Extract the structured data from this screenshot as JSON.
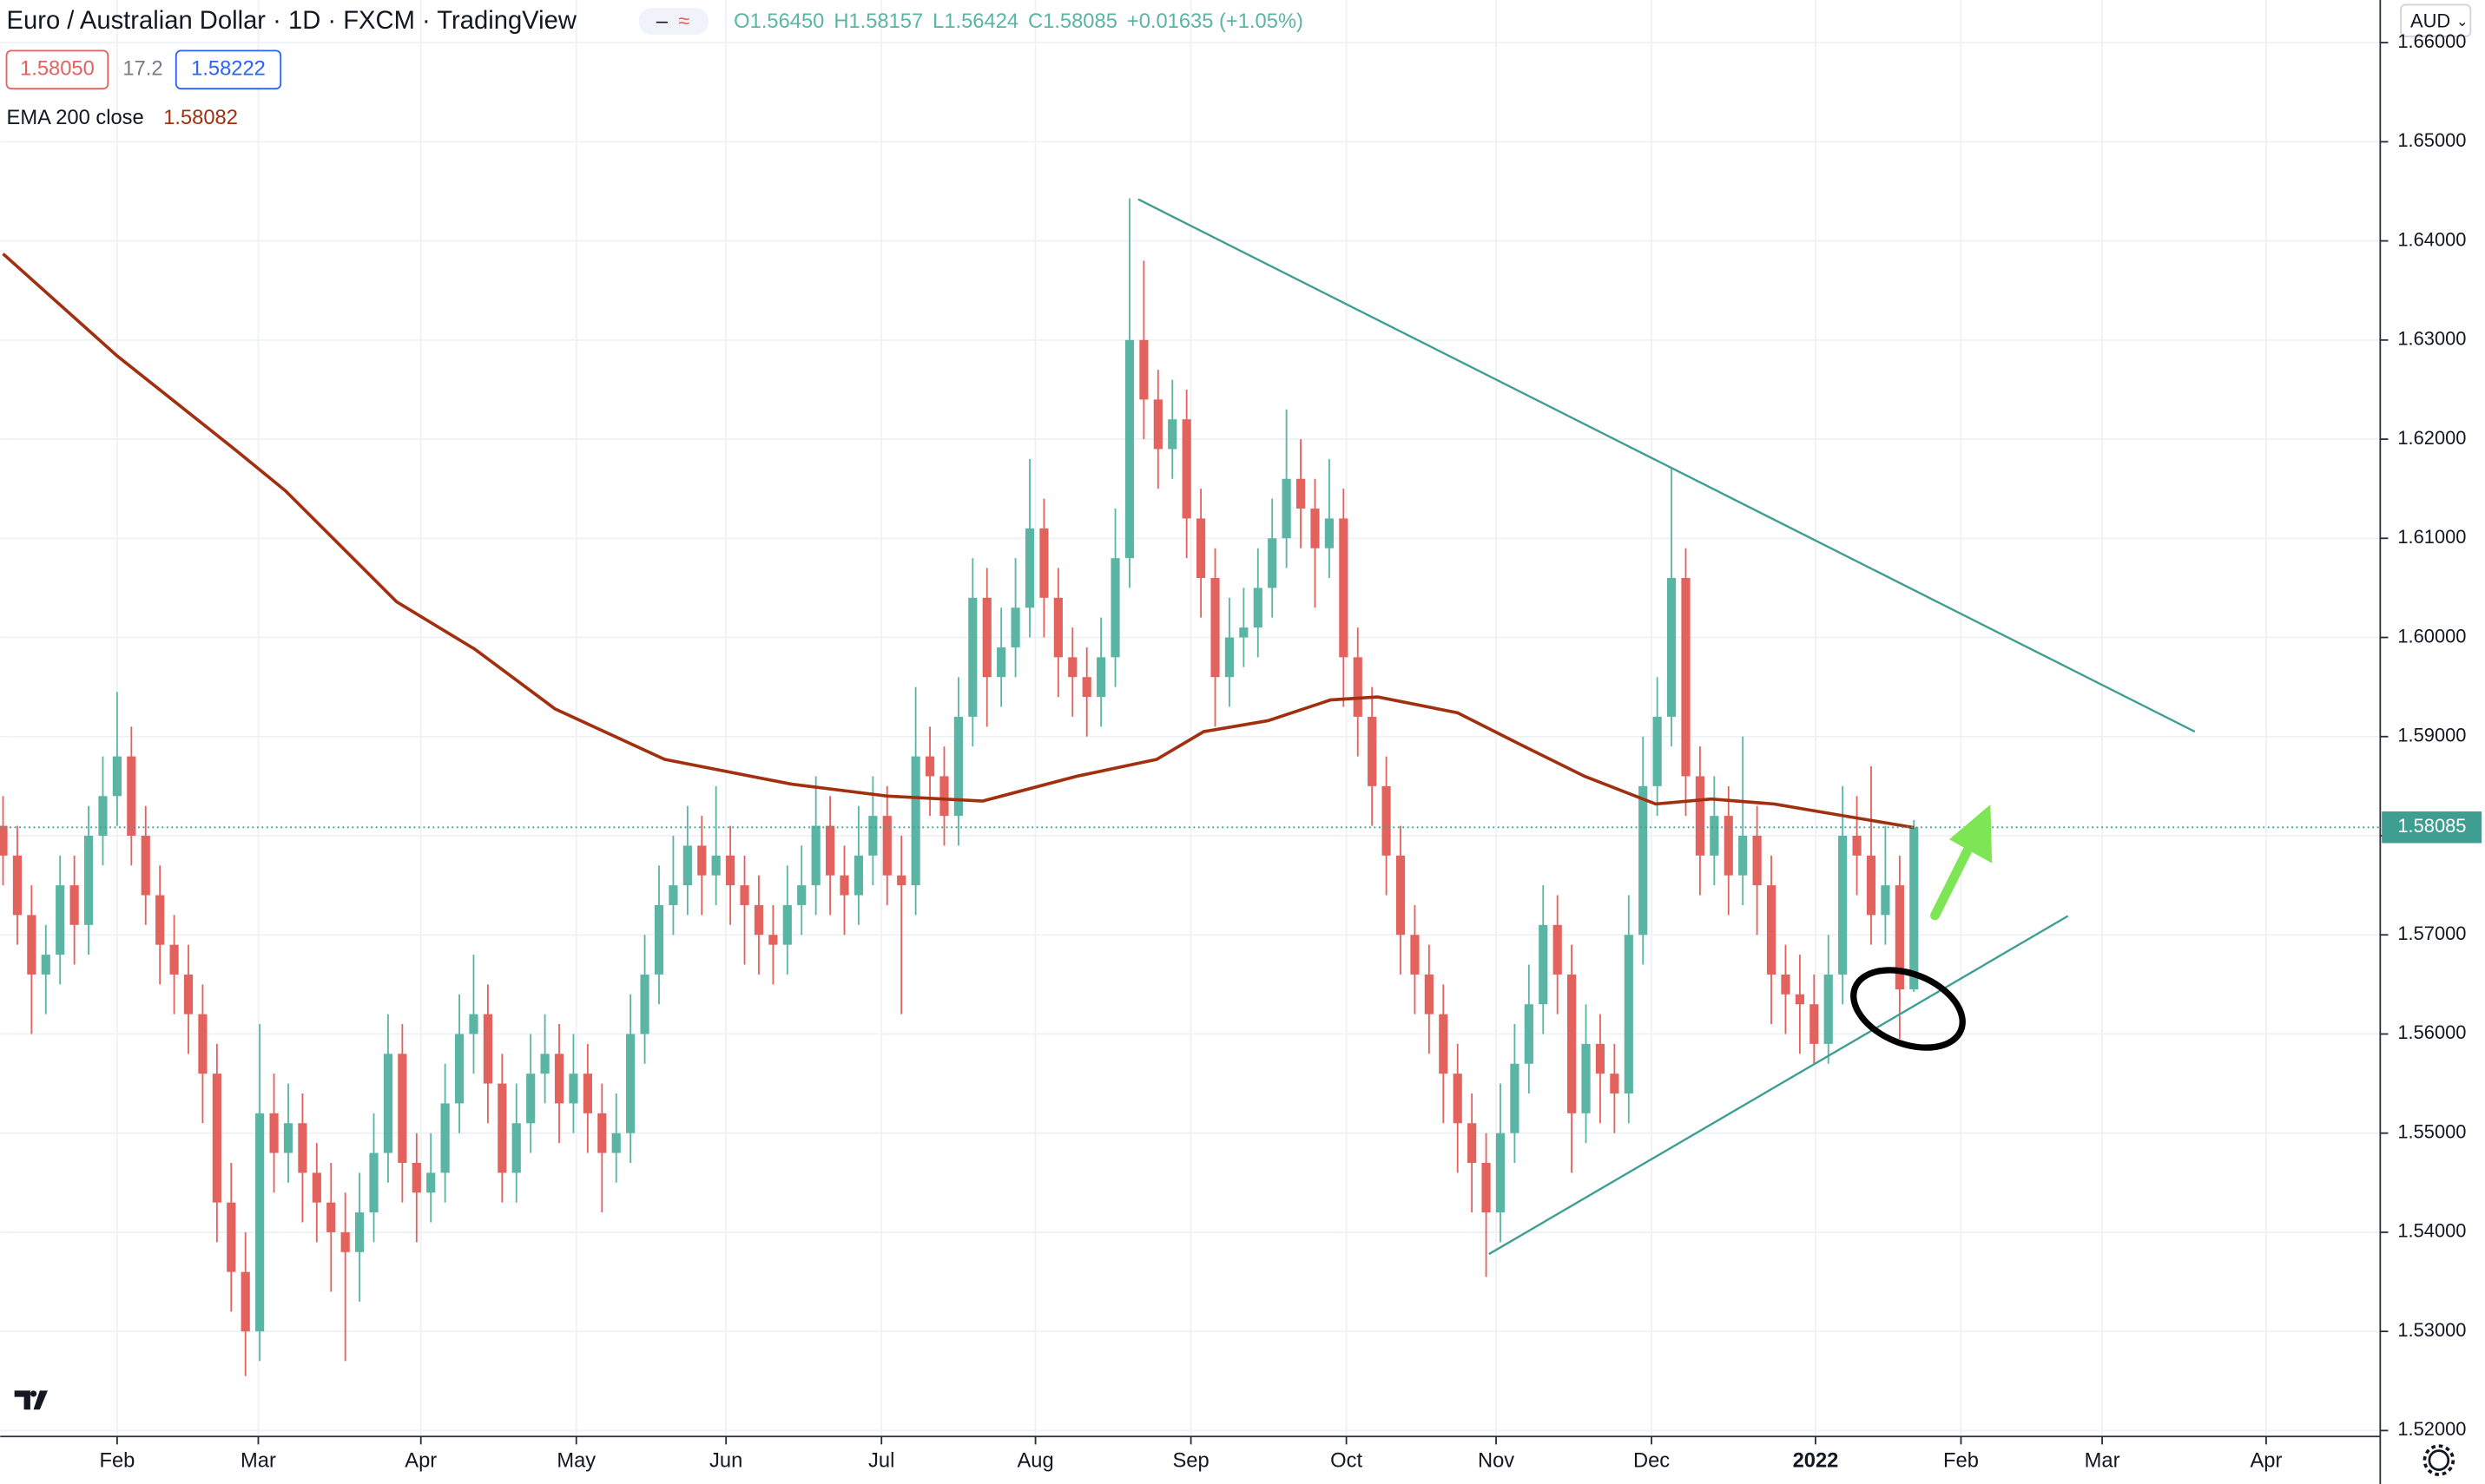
{
  "header": {
    "title": "Euro / Australian Dollar · 1D · FXCM · TradingView",
    "ohlc": [
      "O1.56450",
      "H1.58157",
      "L1.56424",
      "C1.58085"
    ],
    "change": "+0.01635 (+1.05%)",
    "bid": "1.58050",
    "spread": "17.2",
    "ask": "1.58222",
    "currency": "AUD"
  },
  "chart_data": {
    "type": "candlestick",
    "up_color": "#5ab5a4",
    "down_color": "#e4625e",
    "grid": true,
    "xlim": [
      -0.2,
      166.7
    ],
    "ylim": [
      1.5194,
      1.6643
    ],
    "xticks": [
      {
        "value": 8,
        "label": "Feb"
      },
      {
        "value": 17.9,
        "label": "Mar"
      },
      {
        "value": 29.3,
        "label": "Apr"
      },
      {
        "value": 40.2,
        "label": "May"
      },
      {
        "value": 50.7,
        "label": "Jun"
      },
      {
        "value": 61.6,
        "label": "Jul"
      },
      {
        "value": 72.4,
        "label": "Aug"
      },
      {
        "value": 83.3,
        "label": "Sep"
      },
      {
        "value": 94.2,
        "label": "Oct"
      },
      {
        "value": 104.7,
        "label": "Nov"
      },
      {
        "value": 115.6,
        "label": "Dec"
      },
      {
        "value": 127.1,
        "label": "2022",
        "bold": true
      },
      {
        "value": 137.3,
        "label": "Feb"
      },
      {
        "value": 147.2,
        "label": "Mar"
      },
      {
        "value": 158.7,
        "label": "Apr"
      }
    ],
    "yticks": [
      {
        "value": 1.52,
        "label": "1.52000"
      },
      {
        "value": 1.53,
        "label": "1.53000"
      },
      {
        "value": 1.54,
        "label": "1.54000"
      },
      {
        "value": 1.55,
        "label": "1.55000"
      },
      {
        "value": 1.56,
        "label": "1.56000"
      },
      {
        "value": 1.57,
        "label": "1.57000"
      },
      {
        "value": 1.58,
        "label": "1.58000"
      },
      {
        "value": 1.59,
        "label": "1.59000"
      },
      {
        "value": 1.6,
        "label": "1.60000"
      },
      {
        "value": 1.61,
        "label": "1.61000"
      },
      {
        "value": 1.62,
        "label": "1.62000"
      },
      {
        "value": 1.63,
        "label": "1.63000"
      },
      {
        "value": 1.64,
        "label": "1.64000"
      },
      {
        "value": 1.65,
        "label": "1.65000"
      },
      {
        "value": 1.66,
        "label": "1.66000"
      }
    ],
    "ohlc": [
      [
        1.581,
        1.584,
        1.575,
        1.578
      ],
      [
        1.578,
        1.581,
        1.569,
        1.572
      ],
      [
        1.572,
        1.575,
        1.56,
        1.566
      ],
      [
        1.566,
        1.571,
        1.562,
        1.568
      ],
      [
        1.568,
        1.578,
        1.565,
        1.575
      ],
      [
        1.575,
        1.578,
        1.567,
        1.571
      ],
      [
        1.571,
        1.583,
        1.568,
        1.58
      ],
      [
        1.58,
        1.588,
        1.577,
        1.584
      ],
      [
        1.584,
        1.5945,
        1.581,
        1.588
      ],
      [
        1.588,
        1.591,
        1.577,
        1.58
      ],
      [
        1.58,
        1.583,
        1.571,
        1.574
      ],
      [
        1.574,
        1.577,
        1.565,
        1.569
      ],
      [
        1.569,
        1.572,
        1.562,
        1.566
      ],
      [
        1.566,
        1.569,
        1.558,
        1.562
      ],
      [
        1.562,
        1.565,
        1.551,
        1.556
      ],
      [
        1.556,
        1.559,
        1.539,
        1.543
      ],
      [
        1.543,
        1.547,
        1.532,
        1.536
      ],
      [
        1.536,
        1.54,
        1.5255,
        1.53
      ],
      [
        1.53,
        1.561,
        1.527,
        1.552
      ],
      [
        1.552,
        1.556,
        1.544,
        1.548
      ],
      [
        1.548,
        1.555,
        1.545,
        1.551
      ],
      [
        1.551,
        1.554,
        1.541,
        1.546
      ],
      [
        1.546,
        1.549,
        1.539,
        1.543
      ],
      [
        1.543,
        1.547,
        1.534,
        1.54
      ],
      [
        1.54,
        1.544,
        1.527,
        1.538
      ],
      [
        1.538,
        1.546,
        1.533,
        1.542
      ],
      [
        1.542,
        1.552,
        1.539,
        1.548
      ],
      [
        1.548,
        1.562,
        1.545,
        1.558
      ],
      [
        1.558,
        1.561,
        1.543,
        1.547
      ],
      [
        1.547,
        1.55,
        1.539,
        1.544
      ],
      [
        1.544,
        1.55,
        1.541,
        1.546
      ],
      [
        1.546,
        1.557,
        1.543,
        1.553
      ],
      [
        1.553,
        1.564,
        1.55,
        1.56
      ],
      [
        1.56,
        1.568,
        1.556,
        1.562
      ],
      [
        1.562,
        1.565,
        1.551,
        1.555
      ],
      [
        1.555,
        1.558,
        1.543,
        1.546
      ],
      [
        1.546,
        1.555,
        1.543,
        1.551
      ],
      [
        1.551,
        1.56,
        1.548,
        1.556
      ],
      [
        1.556,
        1.562,
        1.553,
        1.558
      ],
      [
        1.558,
        1.561,
        1.549,
        1.553
      ],
      [
        1.553,
        1.56,
        1.55,
        1.556
      ],
      [
        1.556,
        1.559,
        1.548,
        1.552
      ],
      [
        1.552,
        1.555,
        1.542,
        1.548
      ],
      [
        1.548,
        1.554,
        1.545,
        1.55
      ],
      [
        1.55,
        1.564,
        1.547,
        1.56
      ],
      [
        1.56,
        1.57,
        1.557,
        1.566
      ],
      [
        1.566,
        1.577,
        1.563,
        1.573
      ],
      [
        1.573,
        1.58,
        1.57,
        1.575
      ],
      [
        1.575,
        1.583,
        1.572,
        1.579
      ],
      [
        1.579,
        1.582,
        1.572,
        1.576
      ],
      [
        1.576,
        1.585,
        1.573,
        1.578
      ],
      [
        1.578,
        1.581,
        1.571,
        1.575
      ],
      [
        1.575,
        1.578,
        1.567,
        1.573
      ],
      [
        1.573,
        1.576,
        1.566,
        1.57
      ],
      [
        1.57,
        1.573,
        1.565,
        1.569
      ],
      [
        1.569,
        1.577,
        1.566,
        1.573
      ],
      [
        1.573,
        1.579,
        1.57,
        1.575
      ],
      [
        1.575,
        1.586,
        1.572,
        1.581
      ],
      [
        1.581,
        1.584,
        1.572,
        1.576
      ],
      [
        1.576,
        1.579,
        1.57,
        1.574
      ],
      [
        1.574,
        1.583,
        1.571,
        1.578
      ],
      [
        1.578,
        1.586,
        1.575,
        1.582
      ],
      [
        1.582,
        1.585,
        1.573,
        1.576
      ],
      [
        1.576,
        1.58,
        1.562,
        1.575
      ],
      [
        1.575,
        1.595,
        1.572,
        1.588
      ],
      [
        1.588,
        1.591,
        1.582,
        1.586
      ],
      [
        1.586,
        1.589,
        1.579,
        1.582
      ],
      [
        1.582,
        1.596,
        1.579,
        1.592
      ],
      [
        1.592,
        1.608,
        1.589,
        1.604
      ],
      [
        1.604,
        1.607,
        1.591,
        1.596
      ],
      [
        1.596,
        1.603,
        1.593,
        1.599
      ],
      [
        1.599,
        1.608,
        1.596,
        1.603
      ],
      [
        1.603,
        1.618,
        1.6,
        1.611
      ],
      [
        1.611,
        1.614,
        1.6,
        1.604
      ],
      [
        1.604,
        1.607,
        1.594,
        1.598
      ],
      [
        1.598,
        1.601,
        1.592,
        1.596
      ],
      [
        1.596,
        1.599,
        1.59,
        1.594
      ],
      [
        1.594,
        1.602,
        1.591,
        1.598
      ],
      [
        1.598,
        1.613,
        1.595,
        1.608
      ],
      [
        1.608,
        1.6443,
        1.605,
        1.63
      ],
      [
        1.63,
        1.638,
        1.62,
        1.624
      ],
      [
        1.624,
        1.627,
        1.615,
        1.619
      ],
      [
        1.619,
        1.626,
        1.616,
        1.622
      ],
      [
        1.622,
        1.625,
        1.608,
        1.612
      ],
      [
        1.612,
        1.615,
        1.602,
        1.606
      ],
      [
        1.606,
        1.609,
        1.591,
        1.596
      ],
      [
        1.596,
        1.604,
        1.593,
        1.6
      ],
      [
        1.6,
        1.605,
        1.597,
        1.601
      ],
      [
        1.601,
        1.609,
        1.598,
        1.605
      ],
      [
        1.605,
        1.614,
        1.602,
        1.61
      ],
      [
        1.61,
        1.623,
        1.607,
        1.616
      ],
      [
        1.616,
        1.62,
        1.609,
        1.613
      ],
      [
        1.613,
        1.616,
        1.603,
        1.609
      ],
      [
        1.609,
        1.618,
        1.606,
        1.612
      ],
      [
        1.612,
        1.615,
        1.593,
        1.598
      ],
      [
        1.598,
        1.601,
        1.588,
        1.592
      ],
      [
        1.592,
        1.595,
        1.581,
        1.585
      ],
      [
        1.585,
        1.588,
        1.574,
        1.578
      ],
      [
        1.578,
        1.581,
        1.566,
        1.57
      ],
      [
        1.57,
        1.573,
        1.562,
        1.566
      ],
      [
        1.566,
        1.569,
        1.558,
        1.562
      ],
      [
        1.562,
        1.565,
        1.551,
        1.556
      ],
      [
        1.556,
        1.559,
        1.546,
        1.551
      ],
      [
        1.551,
        1.554,
        1.542,
        1.547
      ],
      [
        1.547,
        1.55,
        1.5355,
        1.542
      ],
      [
        1.542,
        1.555,
        1.539,
        1.55
      ],
      [
        1.55,
        1.561,
        1.547,
        1.557
      ],
      [
        1.557,
        1.567,
        1.554,
        1.563
      ],
      [
        1.563,
        1.575,
        1.56,
        1.571
      ],
      [
        1.571,
        1.574,
        1.562,
        1.566
      ],
      [
        1.566,
        1.569,
        1.546,
        1.552
      ],
      [
        1.552,
        1.563,
        1.549,
        1.559
      ],
      [
        1.559,
        1.562,
        1.551,
        1.556
      ],
      [
        1.556,
        1.559,
        1.55,
        1.554
      ],
      [
        1.554,
        1.574,
        1.551,
        1.57
      ],
      [
        1.57,
        1.59,
        1.567,
        1.585
      ],
      [
        1.585,
        1.596,
        1.582,
        1.592
      ],
      [
        1.592,
        1.6172,
        1.589,
        1.606
      ],
      [
        1.606,
        1.609,
        1.582,
        1.586
      ],
      [
        1.586,
        1.589,
        1.574,
        1.578
      ],
      [
        1.578,
        1.586,
        1.575,
        1.582
      ],
      [
        1.582,
        1.585,
        1.572,
        1.576
      ],
      [
        1.576,
        1.59,
        1.573,
        1.58
      ],
      [
        1.58,
        1.583,
        1.57,
        1.575
      ],
      [
        1.575,
        1.578,
        1.561,
        1.566
      ],
      [
        1.566,
        1.569,
        1.56,
        1.564
      ],
      [
        1.564,
        1.568,
        1.558,
        1.563
      ],
      [
        1.563,
        1.566,
        1.557,
        1.559
      ],
      [
        1.559,
        1.57,
        1.557,
        1.566
      ],
      [
        1.566,
        1.585,
        1.563,
        1.58
      ],
      [
        1.58,
        1.584,
        1.574,
        1.578
      ],
      [
        1.578,
        1.587,
        1.569,
        1.572
      ],
      [
        1.572,
        1.581,
        1.569,
        1.575
      ],
      [
        1.575,
        1.578,
        1.5595,
        1.5645
      ],
      [
        1.5645,
        1.58157,
        1.56424,
        1.58085
      ]
    ],
    "ema": {
      "name": "EMA 200 close",
      "color": "#a0300f",
      "value_label": "1.58082",
      "x": [
        0,
        8,
        16.4,
        19.8,
        27.6,
        33.1,
        38.7,
        46.4,
        55.3,
        62,
        68.7,
        75.3,
        80.9,
        84.2,
        88.7,
        93.1,
        96.4,
        102,
        106.4,
        110.9,
        115.9,
        119.8,
        124.2,
        128.7,
        134
      ],
      "values": [
        1.6387,
        1.6284,
        1.6188,
        1.6148,
        1.6036,
        1.5988,
        1.5928,
        1.5877,
        1.5852,
        1.584,
        1.5835,
        1.586,
        1.5877,
        1.5905,
        1.5916,
        1.5937,
        1.594,
        1.5924,
        1.5892,
        1.586,
        1.5832,
        1.5837,
        1.5832,
        1.5821,
        1.58082
      ]
    },
    "trendlines": [
      {
        "color": "#3f9e92",
        "x": [
          79.6,
          153.7
        ],
        "values": [
          1.6442,
          1.5905
        ]
      },
      {
        "color": "#3f9e92",
        "x": [
          104.2,
          144.8
        ],
        "values": [
          1.5378,
          1.5719
        ]
      }
    ],
    "last_price": {
      "value": 1.58085,
      "label": "1.58085",
      "color": "#3f9e92"
    }
  }
}
